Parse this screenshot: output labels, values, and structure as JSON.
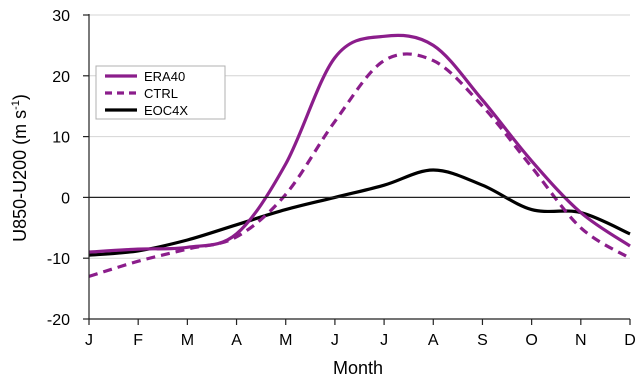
{
  "chart_data": {
    "type": "line",
    "title": "",
    "xlabel": "Month",
    "ylabel": "U850-U200 (m s-1)",
    "ylabel_parts": {
      "main": "U850-U200 (m s",
      "sup": "-1",
      "close": ")"
    },
    "categories": [
      "J",
      "F",
      "M",
      "A",
      "M",
      "J",
      "J",
      "A",
      "S",
      "O",
      "N",
      "D"
    ],
    "yticks": [
      -20,
      -10,
      0,
      10,
      20,
      30
    ],
    "ylim": [
      -20,
      30
    ],
    "grid": "horizontal",
    "legend_position": "upper-left",
    "series": [
      {
        "name": "ERA40",
        "color": "#8b1d8b",
        "style": "solid",
        "values": [
          -9.0,
          -8.5,
          -8.2,
          -6.0,
          5.5,
          23.0,
          26.5,
          25.0,
          16.0,
          6.0,
          -2.5,
          -8.0
        ]
      },
      {
        "name": "CTRL",
        "color": "#8b1d8b",
        "style": "dashed",
        "values": [
          -13.0,
          -10.5,
          -8.5,
          -6.5,
          0.5,
          12.5,
          22.5,
          22.5,
          15.0,
          5.0,
          -5.0,
          -10.0
        ]
      },
      {
        "name": "EOC4X",
        "color": "#000000",
        "style": "solid",
        "values": [
          -9.5,
          -8.8,
          -7.0,
          -4.5,
          -2.0,
          0.0,
          2.0,
          4.5,
          2.0,
          -2.0,
          -2.5,
          -6.0
        ]
      }
    ]
  }
}
